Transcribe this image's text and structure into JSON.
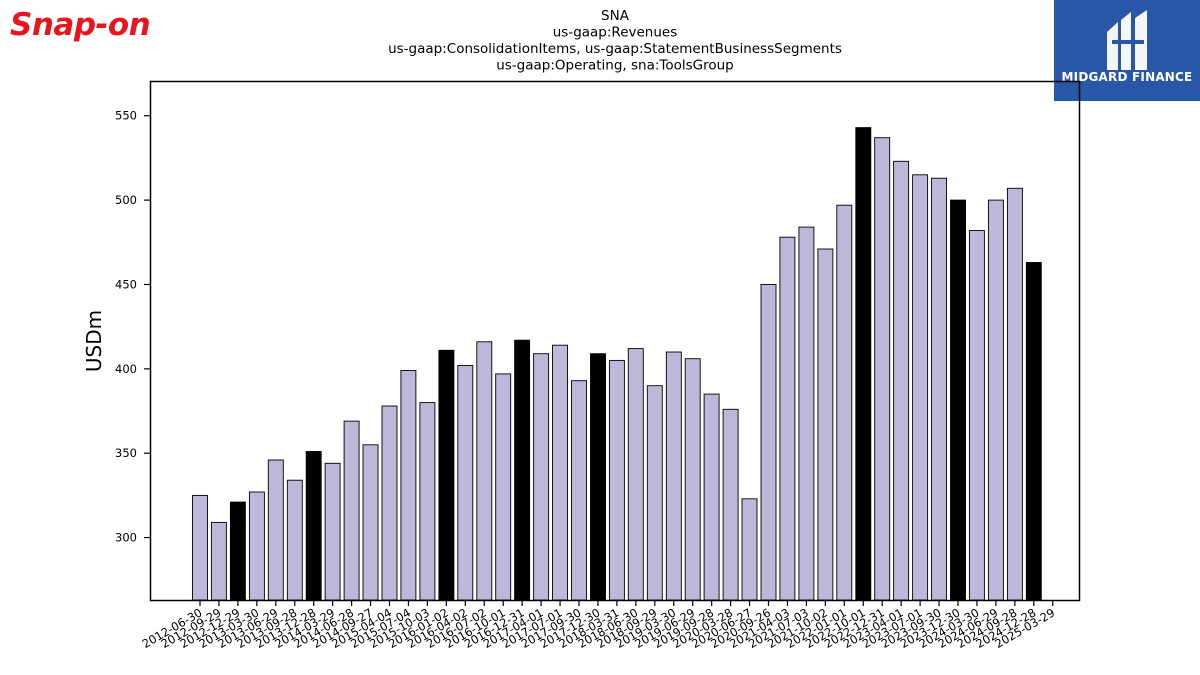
{
  "brand": {
    "left_logo_text": "Snap-on",
    "right_logo_text": "MIDGARD FINANCE",
    "colors": {
      "snapon_red": "#e8141e",
      "midgard_blue": "#2957a8"
    }
  },
  "chart_data": {
    "type": "bar",
    "title_lines": [
      "SNA",
      "us-gaap:Revenues",
      "us-gaap:ConsolidationItems, us-gaap:StatementBusinessSegments",
      "us-gaap:Operating, sna:ToolsGroup"
    ],
    "xlabel": "",
    "ylabel": "USDm",
    "ylim": [
      263,
      570
    ],
    "yticks": [
      300,
      350,
      400,
      450,
      500,
      550
    ],
    "grid": false,
    "colors": {
      "normal": "#bcb8d9",
      "highlight": "#000000",
      "edge": "#000000"
    },
    "categories": [
      "2012-06-30",
      "2012-09-29",
      "2012-12-29",
      "2013-03-30",
      "2013-06-29",
      "2013-09-28",
      "2013-12-28",
      "2014-03-29",
      "2014-06-28",
      "2014-09-27",
      "2015-04-04",
      "2015-07-04",
      "2015-10-03",
      "2016-01-02",
      "2016-04-02",
      "2016-07-02",
      "2016-10-01",
      "2016-12-31",
      "2017-04-01",
      "2017-07-01",
      "2017-09-30",
      "2017-12-30",
      "2018-03-31",
      "2018-06-30",
      "2018-09-29",
      "2019-03-30",
      "2019-06-29",
      "2019-09-28",
      "2020-03-28",
      "2020-06-27",
      "2020-09-26",
      "2021-04-03",
      "2021-07-03",
      "2021-10-02",
      "2022-01-01",
      "2022-10-01",
      "2022-12-31",
      "2023-04-01",
      "2023-07-01",
      "2023-09-30",
      "2023-12-30",
      "2024-03-30",
      "2024-06-29",
      "2024-09-28",
      "2024-12-28",
      "2025-03-29"
    ],
    "values": [
      325,
      309,
      321,
      327,
      346,
      334,
      351,
      344,
      369,
      355,
      378,
      399,
      380,
      411,
      402,
      416,
      397,
      417,
      409,
      414,
      393,
      409,
      405,
      412,
      390,
      410,
      406,
      385,
      376,
      323,
      450,
      478,
      484,
      471,
      497,
      543,
      537,
      523,
      515,
      513,
      500,
      482,
      500,
      507,
      463,
      null
    ],
    "highlight": [
      false,
      false,
      true,
      false,
      false,
      false,
      true,
      false,
      false,
      false,
      false,
      false,
      false,
      true,
      false,
      false,
      false,
      true,
      false,
      false,
      false,
      true,
      false,
      false,
      false,
      false,
      false,
      false,
      false,
      false,
      false,
      false,
      false,
      false,
      false,
      true,
      false,
      false,
      false,
      false,
      true,
      false,
      false,
      false,
      true,
      false
    ]
  }
}
